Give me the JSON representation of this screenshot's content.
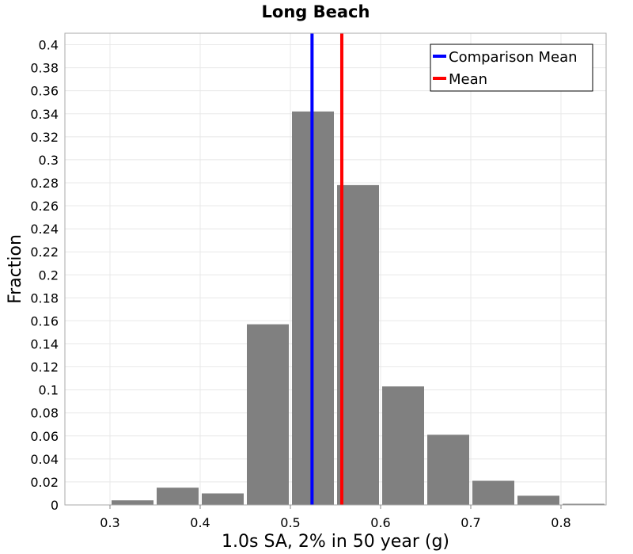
{
  "chart_data": {
    "type": "bar",
    "title": "Long Beach",
    "xlabel": "1.0s SA, 2% in 50 year (g)",
    "ylabel": "Fraction",
    "xlim": [
      0.25,
      0.85
    ],
    "ylim": [
      0,
      0.41
    ],
    "x_ticks": [
      "0.3",
      "0.4",
      "0.5",
      "0.6",
      "0.7",
      "0.8"
    ],
    "y_ticks": [
      "0",
      "0.02",
      "0.04",
      "0.06",
      "0.08",
      "0.1",
      "0.12",
      "0.14",
      "0.16",
      "0.18",
      "0.2",
      "0.22",
      "0.24",
      "0.26",
      "0.28",
      "0.3",
      "0.32",
      "0.34",
      "0.36",
      "0.38",
      "0.4"
    ],
    "grid": true,
    "bin_width": 0.05,
    "bins": [
      {
        "x": 0.275,
        "value": 0.0
      },
      {
        "x": 0.325,
        "value": 0.004
      },
      {
        "x": 0.375,
        "value": 0.015
      },
      {
        "x": 0.425,
        "value": 0.01
      },
      {
        "x": 0.475,
        "value": 0.157
      },
      {
        "x": 0.525,
        "value": 0.342
      },
      {
        "x": 0.575,
        "value": 0.278
      },
      {
        "x": 0.625,
        "value": 0.103
      },
      {
        "x": 0.675,
        "value": 0.061
      },
      {
        "x": 0.725,
        "value": 0.021
      },
      {
        "x": 0.775,
        "value": 0.008
      },
      {
        "x": 0.825,
        "value": 0.001
      }
    ],
    "bar_color": "#808080",
    "reference_lines": [
      {
        "name": "Comparison Mean",
        "x": 0.524,
        "color": "#0000ff"
      },
      {
        "name": "Mean",
        "x": 0.557,
        "color": "#ff0000"
      }
    ],
    "legend_position": "top-right"
  }
}
